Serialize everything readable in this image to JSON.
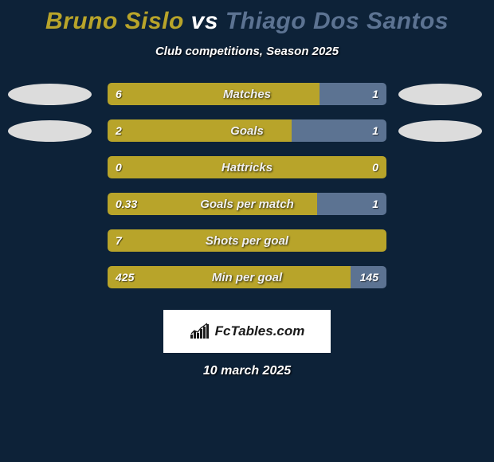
{
  "title": {
    "player1": "Bruno Sislo",
    "vs": "vs",
    "player2": "Thiago Dos Santos",
    "player1_color": "#b8a42a",
    "player2_color": "#5c7392"
  },
  "subtitle": "Club competitions, Season 2025",
  "background_color": "#0d2238",
  "bars": {
    "track_width": 350,
    "left_color": "#b8a42a",
    "right_color": "#5c7392",
    "rows": [
      {
        "metric": "Matches",
        "left_val": "6",
        "right_val": "1",
        "left_pct": 76,
        "avatar": true
      },
      {
        "metric": "Goals",
        "left_val": "2",
        "right_val": "1",
        "left_pct": 66,
        "avatar": true
      },
      {
        "metric": "Hattricks",
        "left_val": "0",
        "right_val": "0",
        "left_pct": 100,
        "avatar": false
      },
      {
        "metric": "Goals per match",
        "left_val": "0.33",
        "right_val": "1",
        "left_pct": 75,
        "avatar": false
      },
      {
        "metric": "Shots per goal",
        "left_val": "7",
        "right_val": "",
        "left_pct": 100,
        "avatar": false
      },
      {
        "metric": "Min per goal",
        "left_val": "425",
        "right_val": "145",
        "left_pct": 87,
        "avatar": false
      }
    ]
  },
  "logo_text": "FcTables.com",
  "date": "10 march 2025"
}
